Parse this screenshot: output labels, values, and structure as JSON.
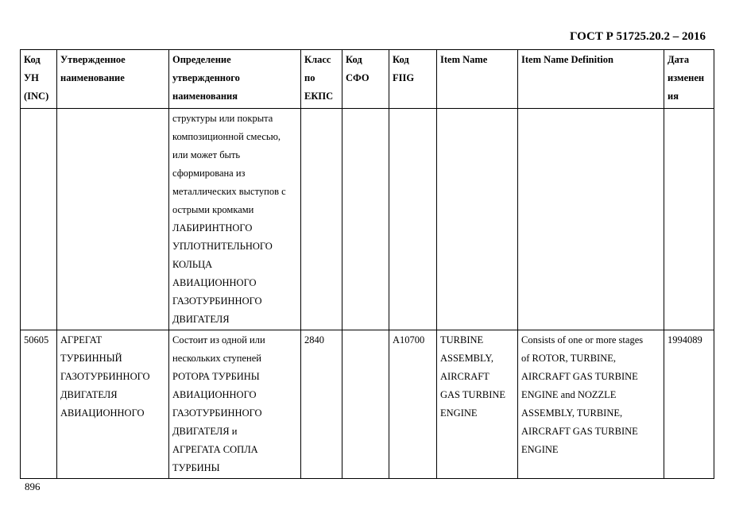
{
  "doc_code": "ГОСТ Р 51725.20.2 – 2016",
  "page_number": "896",
  "headers": [
    [
      "Код",
      "УН",
      "(INC)"
    ],
    [
      "Утвержденное",
      "наименование"
    ],
    [
      "Определение",
      "утвержденного",
      "наименования"
    ],
    [
      "Класс",
      "по",
      "ЕКПС"
    ],
    [
      "Код",
      "СФО"
    ],
    [
      "Код",
      "FIIG"
    ],
    [
      "Item Name"
    ],
    [
      "Item Name Definition"
    ],
    [
      "Дата",
      "изменен",
      "ия"
    ]
  ],
  "rows": [
    [
      [],
      [],
      [
        "структуры или покрыта",
        "композиционной смесью,",
        "или может быть",
        "сформирована из",
        "металлических выступов с",
        "острыми кромками",
        "ЛАБИРИНТНОГО",
        "УПЛОТНИТЕЛЬНОГО",
        "КОЛЬЦА",
        "АВИАЦИОННОГО",
        "ГАЗОТУРБИННОГО",
        "ДВИГАТЕЛЯ"
      ],
      [],
      [],
      [],
      [],
      [],
      []
    ],
    [
      [
        "50605"
      ],
      [
        "АГРЕГАТ",
        "ТУРБИННЫЙ",
        "ГАЗОТУРБИННОГО",
        "ДВИГАТЕЛЯ",
        "АВИАЦИОННОГО"
      ],
      [
        "Состоит из одной или",
        "нескольких ступеней",
        "РОТОРА ТУРБИНЫ",
        "АВИАЦИОННОГО",
        "ГАЗОТУРБИННОГО",
        "ДВИГАТЕЛЯ и",
        "АГРЕГАТА СОПЛА",
        "ТУРБИНЫ"
      ],
      [
        "2840"
      ],
      [],
      [
        "A10700"
      ],
      [
        "TURBINE",
        "ASSEMBLY,",
        "AIRCRAFT",
        "GAS TURBINE",
        "ENGINE"
      ],
      [
        "Consists of one or more stages",
        "of ROTOR, TURBINE,",
        "AIRCRAFT GAS TURBINE",
        "ENGINE and NOZZLE",
        "ASSEMBLY, TURBINE,",
        "AIRCRAFT GAS TURBINE",
        "ENGINE"
      ],
      [
        "1994089"
      ]
    ]
  ]
}
